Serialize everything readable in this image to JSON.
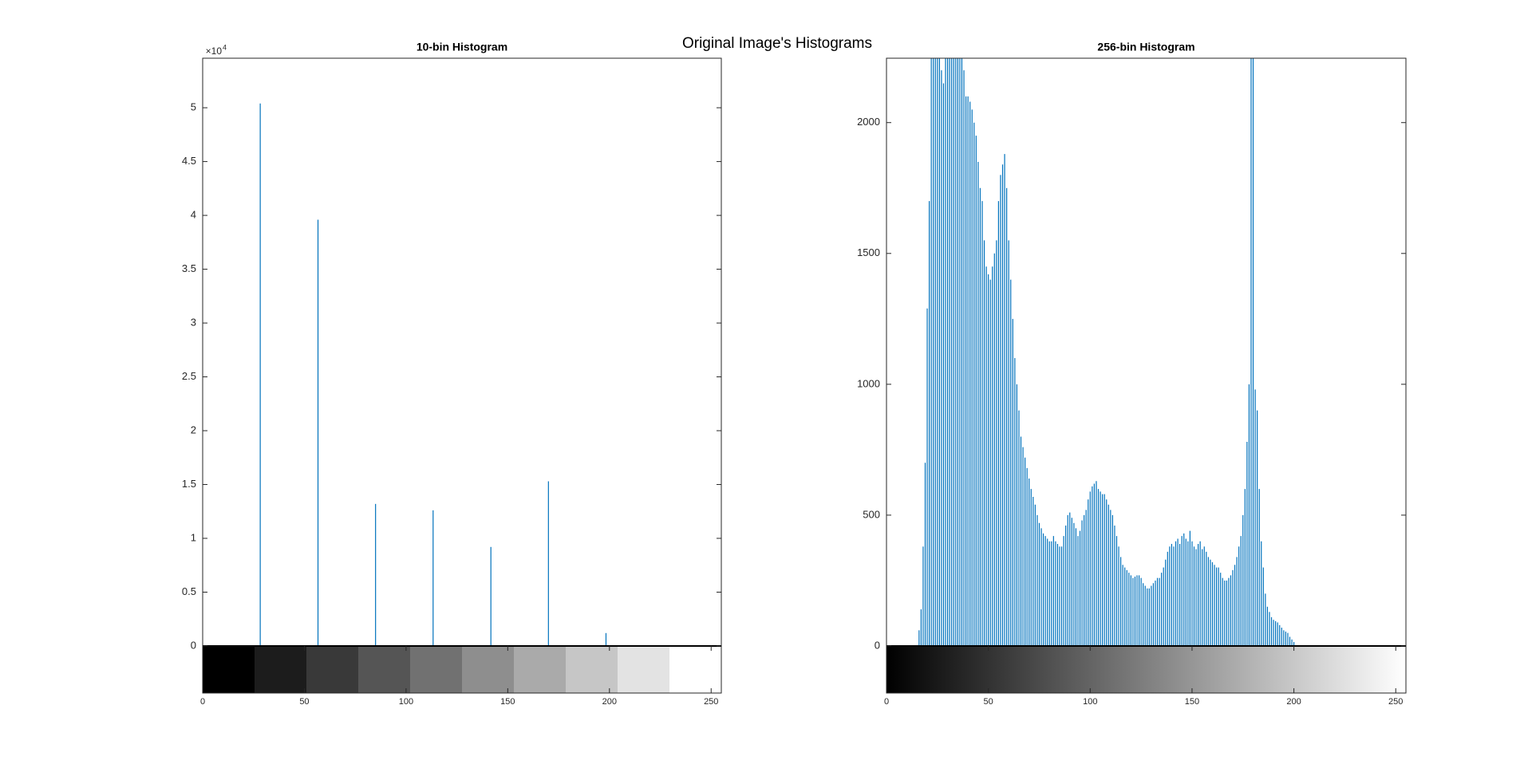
{
  "title": "Original Image's Histograms",
  "chart_data": [
    {
      "type": "stem",
      "title": "10-bin Histogram",
      "color": "#0072bd",
      "x": [
        0,
        28.3,
        56.7,
        85,
        113.3,
        141.7,
        170,
        198.3,
        226.7,
        255
      ],
      "values": [
        0,
        50400,
        39600,
        13200,
        12600,
        9200,
        15300,
        1200,
        0,
        0
      ],
      "xlim": [
        0,
        255
      ],
      "xticks": [
        0,
        50,
        100,
        150,
        200,
        250
      ],
      "ylim": [
        0,
        54600
      ],
      "yticks": [
        0,
        {
          "value": 5000,
          "label": "0.5"
        },
        {
          "value": 10000,
          "label": "1"
        },
        {
          "value": 15000,
          "label": "1.5"
        },
        {
          "value": 20000,
          "label": "2"
        },
        {
          "value": 25000,
          "label": "2.5"
        },
        {
          "value": 30000,
          "label": "3"
        },
        {
          "value": 35000,
          "label": "3.5"
        },
        {
          "value": 40000,
          "label": "4"
        },
        {
          "value": 45000,
          "label": "4.5"
        },
        {
          "value": 50000,
          "label": "5"
        }
      ],
      "y_multiplier": {
        "base": "×10",
        "exponent": "4"
      },
      "colorbar": "blocks"
    },
    {
      "type": "stem",
      "title": "256-bin Histogram",
      "color": "#0072bd",
      "values": [
        0,
        0,
        0,
        0,
        0,
        0,
        0,
        0,
        0,
        0,
        0,
        0,
        0,
        0,
        0,
        0,
        60,
        140,
        380,
        700,
        1290,
        1700,
        2300,
        2400,
        2450,
        2400,
        2300,
        2200,
        2150,
        2250,
        2350,
        2450,
        2450,
        2400,
        2350,
        2300,
        2250,
        2250,
        2200,
        2100,
        2100,
        2080,
        2050,
        2000,
        1950,
        1850,
        1750,
        1700,
        1550,
        1450,
        1420,
        1400,
        1450,
        1500,
        1550,
        1700,
        1800,
        1840,
        1880,
        1750,
        1550,
        1400,
        1250,
        1100,
        1000,
        900,
        800,
        760,
        720,
        680,
        640,
        600,
        570,
        540,
        500,
        470,
        450,
        430,
        420,
        410,
        400,
        400,
        420,
        400,
        390,
        380,
        380,
        420,
        460,
        500,
        510,
        490,
        470,
        450,
        420,
        440,
        480,
        500,
        520,
        560,
        590,
        610,
        620,
        630,
        600,
        590,
        580,
        580,
        560,
        540,
        520,
        500,
        460,
        420,
        380,
        340,
        310,
        300,
        290,
        280,
        270,
        260,
        265,
        270,
        270,
        260,
        240,
        230,
        220,
        220,
        230,
        240,
        250,
        260,
        260,
        280,
        300,
        330,
        360,
        380,
        390,
        380,
        400,
        410,
        390,
        420,
        430,
        410,
        400,
        440,
        400,
        380,
        370,
        390,
        400,
        370,
        380,
        360,
        340,
        330,
        320,
        310,
        300,
        300,
        280,
        260,
        250,
        250,
        260,
        270,
        290,
        310,
        340,
        380,
        420,
        500,
        600,
        780,
        1000,
        2400,
        2400,
        980,
        900,
        600,
        400,
        300,
        200,
        150,
        130,
        110,
        100,
        95,
        90,
        80,
        70,
        60,
        55,
        50,
        35,
        25,
        15,
        0,
        0,
        0,
        0,
        0,
        0,
        0,
        0,
        0,
        0,
        0,
        0,
        0,
        0,
        0,
        0,
        0,
        0,
        0,
        0,
        0,
        0,
        0,
        0,
        0,
        0,
        0,
        0,
        0,
        0,
        0,
        0,
        0,
        0,
        0,
        0,
        0,
        0,
        0,
        0,
        0,
        0,
        0,
        0,
        0,
        0,
        0,
        0,
        0,
        0,
        0,
        0,
        0,
        0,
        0,
        0,
        0,
        0,
        0,
        0,
        0,
        0,
        0,
        0
      ],
      "xlim": [
        0,
        255
      ],
      "xticks": [
        0,
        50,
        100,
        150,
        200,
        250
      ],
      "ylim": [
        0,
        2246
      ],
      "yticks": [
        0,
        500,
        1000,
        1500,
        2000
      ],
      "colorbar": "gradient"
    }
  ]
}
